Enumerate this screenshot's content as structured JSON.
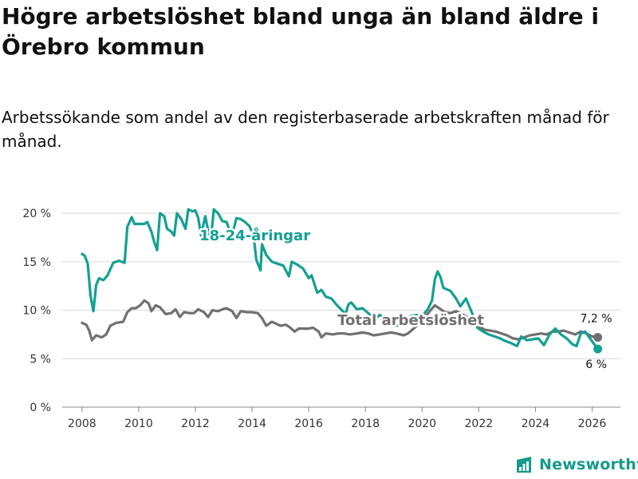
{
  "title": "Högre arbetslöshet bland unga än bland äldre i Örebro kommun",
  "subtitle": "Arbetssökande som andel av den registerbaserade arbetskraften månad för månad.",
  "brand": {
    "name": "Newsworthy",
    "color": "#149a8a",
    "icon": "newsworthy-logo-icon"
  },
  "chart_data": {
    "type": "line",
    "title": "Högre arbetslöshet bland unga än bland äldre i Örebro kommun",
    "xlabel": "",
    "ylabel": "",
    "ylim": [
      0,
      21
    ],
    "xlim": [
      2007.3,
      2027.0
    ],
    "grid": true,
    "yticks": [
      0,
      5,
      10,
      15,
      20
    ],
    "ytick_labels": [
      "0 %",
      "5 %",
      "10 %",
      "15 %",
      "20 %"
    ],
    "xticks": [
      2008,
      2010,
      2012,
      2014,
      2016,
      2018,
      2020,
      2022,
      2024,
      2026
    ],
    "xtick_labels": [
      "2008",
      "2010",
      "2012",
      "2014",
      "2016",
      "2018",
      "2020",
      "2022",
      "2024",
      "2026"
    ],
    "series": [
      {
        "name": "18-24-åringar",
        "color": "#14a093",
        "label_anchor": [
          2014.1,
          17.2
        ],
        "end_label": "6 %",
        "end_value": 6.0,
        "points": [
          [
            2008.0,
            15.8
          ],
          [
            2008.1,
            15.6
          ],
          [
            2008.2,
            14.8
          ],
          [
            2008.3,
            11.5
          ],
          [
            2008.4,
            9.9
          ],
          [
            2008.5,
            12.6
          ],
          [
            2008.6,
            13.3
          ],
          [
            2008.75,
            13.1
          ],
          [
            2008.9,
            13.6
          ],
          [
            2009.1,
            14.9
          ],
          [
            2009.3,
            15.1
          ],
          [
            2009.5,
            14.9
          ],
          [
            2009.6,
            18.6
          ],
          [
            2009.75,
            19.6
          ],
          [
            2009.85,
            18.9
          ],
          [
            2010.0,
            18.9
          ],
          [
            2010.2,
            18.9
          ],
          [
            2010.3,
            19.1
          ],
          [
            2010.45,
            18.1
          ],
          [
            2010.55,
            17.0
          ],
          [
            2010.65,
            16.2
          ],
          [
            2010.75,
            20.0
          ],
          [
            2010.9,
            19.7
          ],
          [
            2011.0,
            18.4
          ],
          [
            2011.15,
            18.1
          ],
          [
            2011.25,
            17.7
          ],
          [
            2011.35,
            20.0
          ],
          [
            2011.5,
            19.4
          ],
          [
            2011.65,
            18.4
          ],
          [
            2011.75,
            20.4
          ],
          [
            2011.9,
            20.2
          ],
          [
            2012.0,
            20.3
          ],
          [
            2012.1,
            19.5
          ],
          [
            2012.2,
            17.7
          ],
          [
            2012.35,
            19.7
          ],
          [
            2012.45,
            18.2
          ],
          [
            2012.55,
            17.4
          ],
          [
            2012.65,
            20.4
          ],
          [
            2012.8,
            20.0
          ],
          [
            2012.95,
            19.2
          ],
          [
            2013.1,
            19.1
          ],
          [
            2013.2,
            18.3
          ],
          [
            2013.3,
            17.8
          ],
          [
            2013.45,
            19.5
          ],
          [
            2013.6,
            19.4
          ],
          [
            2013.75,
            19.1
          ],
          [
            2013.9,
            18.7
          ],
          [
            2014.05,
            17.8
          ],
          [
            2014.15,
            15.2
          ],
          [
            2014.3,
            14.1
          ],
          [
            2014.35,
            16.8
          ],
          [
            2014.5,
            15.7
          ],
          [
            2014.7,
            15.0
          ],
          [
            2014.9,
            14.8
          ],
          [
            2015.1,
            14.6
          ],
          [
            2015.3,
            13.5
          ],
          [
            2015.4,
            15.0
          ],
          [
            2015.6,
            14.7
          ],
          [
            2015.8,
            14.3
          ],
          [
            2016.0,
            13.3
          ],
          [
            2016.1,
            13.6
          ],
          [
            2016.3,
            11.8
          ],
          [
            2016.45,
            12.1
          ],
          [
            2016.6,
            11.4
          ],
          [
            2016.8,
            11.2
          ],
          [
            2017.0,
            10.5
          ],
          [
            2017.2,
            9.9
          ],
          [
            2017.3,
            9.6
          ],
          [
            2017.4,
            10.6
          ],
          [
            2017.5,
            10.8
          ],
          [
            2017.7,
            10.1
          ],
          [
            2017.9,
            10.2
          ],
          [
            2018.1,
            9.7
          ],
          [
            2018.3,
            9.0
          ],
          [
            2018.5,
            9.5
          ],
          [
            2018.7,
            9.2
          ],
          [
            2018.9,
            8.8
          ],
          [
            2019.1,
            8.4
          ],
          [
            2019.4,
            8.6
          ],
          [
            2019.6,
            9.4
          ],
          [
            2019.8,
            9.5
          ],
          [
            2020.0,
            9.4
          ],
          [
            2020.2,
            10.1
          ],
          [
            2020.35,
            11.0
          ],
          [
            2020.45,
            13.2
          ],
          [
            2020.55,
            14.0
          ],
          [
            2020.65,
            13.4
          ],
          [
            2020.75,
            12.3
          ],
          [
            2021.0,
            12.0
          ],
          [
            2021.2,
            11.2
          ],
          [
            2021.35,
            10.4
          ],
          [
            2021.55,
            11.2
          ],
          [
            2021.75,
            9.8
          ],
          [
            2021.95,
            8.2
          ],
          [
            2022.15,
            7.8
          ],
          [
            2022.35,
            7.5
          ],
          [
            2022.55,
            7.3
          ],
          [
            2022.75,
            7.1
          ],
          [
            2022.95,
            6.8
          ],
          [
            2023.15,
            6.6
          ],
          [
            2023.35,
            6.3
          ],
          [
            2023.5,
            7.3
          ],
          [
            2023.7,
            6.9
          ],
          [
            2023.9,
            7.0
          ],
          [
            2024.1,
            7.1
          ],
          [
            2024.3,
            6.4
          ],
          [
            2024.5,
            7.5
          ],
          [
            2024.7,
            8.1
          ],
          [
            2024.9,
            7.5
          ],
          [
            2025.1,
            7.1
          ],
          [
            2025.3,
            6.5
          ],
          [
            2025.45,
            6.3
          ],
          [
            2025.6,
            7.6
          ],
          [
            2025.75,
            7.8
          ],
          [
            2025.9,
            7.2
          ],
          [
            2026.05,
            6.6
          ],
          [
            2026.2,
            6.0
          ]
        ]
      },
      {
        "name": "Total arbetslöshet",
        "color": "#707070",
        "label_anchor": [
          2019.6,
          8.5
        ],
        "end_label": "7,2 %",
        "end_value": 7.2,
        "points": [
          [
            2008.0,
            8.7
          ],
          [
            2008.15,
            8.5
          ],
          [
            2008.25,
            7.9
          ],
          [
            2008.35,
            6.9
          ],
          [
            2008.5,
            7.4
          ],
          [
            2008.7,
            7.2
          ],
          [
            2008.85,
            7.5
          ],
          [
            2009.0,
            8.4
          ],
          [
            2009.2,
            8.7
          ],
          [
            2009.45,
            8.8
          ],
          [
            2009.6,
            9.8
          ],
          [
            2009.75,
            10.2
          ],
          [
            2009.9,
            10.2
          ],
          [
            2010.05,
            10.5
          ],
          [
            2010.2,
            11.0
          ],
          [
            2010.35,
            10.7
          ],
          [
            2010.45,
            9.9
          ],
          [
            2010.6,
            10.5
          ],
          [
            2010.75,
            10.3
          ],
          [
            2010.95,
            9.6
          ],
          [
            2011.15,
            9.7
          ],
          [
            2011.3,
            10.1
          ],
          [
            2011.45,
            9.3
          ],
          [
            2011.6,
            9.8
          ],
          [
            2011.8,
            9.7
          ],
          [
            2011.95,
            9.7
          ],
          [
            2012.1,
            10.1
          ],
          [
            2012.3,
            9.8
          ],
          [
            2012.45,
            9.3
          ],
          [
            2012.6,
            10.0
          ],
          [
            2012.8,
            9.9
          ],
          [
            2012.95,
            10.1
          ],
          [
            2013.1,
            10.2
          ],
          [
            2013.3,
            9.9
          ],
          [
            2013.45,
            9.2
          ],
          [
            2013.6,
            9.9
          ],
          [
            2013.8,
            9.8
          ],
          [
            2014.0,
            9.8
          ],
          [
            2014.2,
            9.7
          ],
          [
            2014.35,
            9.2
          ],
          [
            2014.5,
            8.4
          ],
          [
            2014.7,
            8.8
          ],
          [
            2014.85,
            8.6
          ],
          [
            2015.0,
            8.4
          ],
          [
            2015.2,
            8.5
          ],
          [
            2015.35,
            8.2
          ],
          [
            2015.5,
            7.8
          ],
          [
            2015.65,
            8.1
          ],
          [
            2015.85,
            8.1
          ],
          [
            2016.0,
            8.1
          ],
          [
            2016.15,
            8.2
          ],
          [
            2016.35,
            7.8
          ],
          [
            2016.45,
            7.2
          ],
          [
            2016.6,
            7.6
          ],
          [
            2016.85,
            7.5
          ],
          [
            2017.05,
            7.6
          ],
          [
            2017.25,
            7.6
          ],
          [
            2017.45,
            7.5
          ],
          [
            2017.7,
            7.6
          ],
          [
            2017.9,
            7.7
          ],
          [
            2018.1,
            7.6
          ],
          [
            2018.3,
            7.4
          ],
          [
            2018.5,
            7.5
          ],
          [
            2018.7,
            7.6
          ],
          [
            2018.9,
            7.7
          ],
          [
            2019.1,
            7.6
          ],
          [
            2019.35,
            7.4
          ],
          [
            2019.5,
            7.6
          ],
          [
            2019.7,
            8.1
          ],
          [
            2019.9,
            8.6
          ],
          [
            2020.1,
            9.3
          ],
          [
            2020.3,
            10.0
          ],
          [
            2020.45,
            10.5
          ],
          [
            2020.6,
            10.2
          ],
          [
            2020.8,
            9.8
          ],
          [
            2021.0,
            9.7
          ],
          [
            2021.2,
            9.9
          ],
          [
            2021.4,
            9.6
          ],
          [
            2021.6,
            9.3
          ],
          [
            2021.8,
            8.8
          ],
          [
            2022.0,
            8.4
          ],
          [
            2022.2,
            8.0
          ],
          [
            2022.4,
            7.9
          ],
          [
            2022.6,
            7.8
          ],
          [
            2022.8,
            7.6
          ],
          [
            2023.0,
            7.4
          ],
          [
            2023.2,
            7.1
          ],
          [
            2023.4,
            7.0
          ],
          [
            2023.6,
            7.2
          ],
          [
            2023.8,
            7.4
          ],
          [
            2024.0,
            7.5
          ],
          [
            2024.2,
            7.6
          ],
          [
            2024.4,
            7.5
          ],
          [
            2024.6,
            7.8
          ],
          [
            2024.8,
            7.8
          ],
          [
            2025.0,
            7.9
          ],
          [
            2025.2,
            7.7
          ],
          [
            2025.4,
            7.5
          ],
          [
            2025.6,
            7.8
          ],
          [
            2025.8,
            7.6
          ],
          [
            2026.0,
            7.3
          ],
          [
            2026.2,
            7.2
          ]
        ]
      }
    ]
  }
}
